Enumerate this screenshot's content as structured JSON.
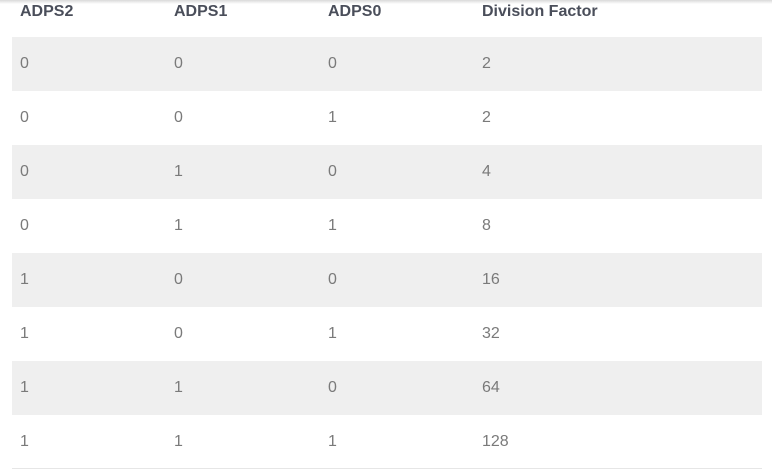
{
  "table": {
    "headers": [
      "ADPS2",
      "ADPS1",
      "ADPS0",
      "Division Factor"
    ],
    "rows": [
      [
        "0",
        "0",
        "0",
        "2"
      ],
      [
        "0",
        "0",
        "1",
        "2"
      ],
      [
        "0",
        "1",
        "0",
        "4"
      ],
      [
        "0",
        "1",
        "1",
        "8"
      ],
      [
        "1",
        "0",
        "0",
        "16"
      ],
      [
        "1",
        "0",
        "1",
        "32"
      ],
      [
        "1",
        "1",
        "0",
        "64"
      ],
      [
        "1",
        "1",
        "1",
        "128"
      ]
    ]
  }
}
